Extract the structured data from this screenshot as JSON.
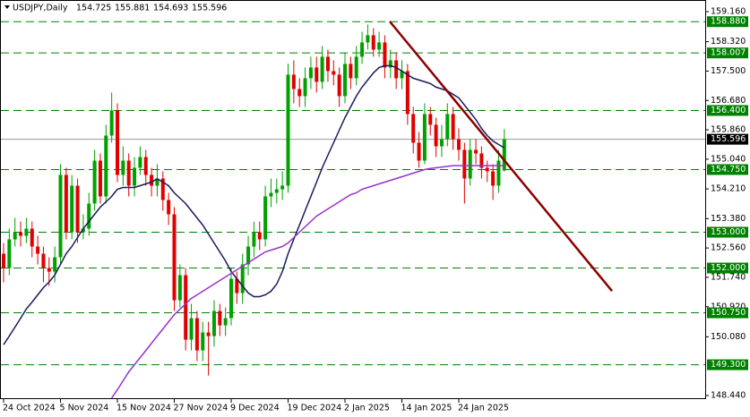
{
  "chart_data": {
    "type": "candlestick",
    "title": "USDJPY,Daily",
    "categories": [
      "24 Oct 2024",
      null,
      null,
      null,
      null,
      null,
      null,
      null,
      null,
      null,
      "5 Nov 2024",
      null,
      null,
      null,
      null,
      null,
      null,
      null,
      null,
      null,
      "15 Nov 2024",
      null,
      null,
      null,
      null,
      null,
      null,
      null,
      null,
      null,
      "27 Nov 2024",
      null,
      null,
      null,
      null,
      null,
      null,
      null,
      null,
      null,
      "9 Dec 2024",
      null,
      null,
      null,
      null,
      null,
      null,
      null,
      null,
      null,
      "19 Dec 2024",
      null,
      null,
      null,
      null,
      null,
      null,
      null,
      null,
      null,
      "2 Jan 2025",
      null,
      null,
      null,
      null,
      null,
      null,
      null,
      null,
      null,
      "14 Jan 2025",
      null,
      null,
      null,
      null,
      null,
      null,
      null,
      null,
      null,
      "24 Jan 2025",
      null,
      null,
      null,
      null,
      null,
      null,
      null,
      null
    ],
    "open": [
      152.4,
      152.0,
      152.8,
      153.0,
      152.9,
      153.1,
      152.6,
      152.4,
      152.0,
      151.9,
      152.3,
      154.6,
      153.0,
      154.3,
      153.0,
      153.1,
      153.8,
      155.0,
      154.0,
      155.7,
      156.4,
      154.6,
      155.0,
      154.3,
      154.8,
      155.1,
      154.6,
      154.3,
      154.5,
      153.9,
      153.5,
      151.1,
      151.8,
      150.0,
      150.6,
      149.7,
      150.2,
      150.1,
      150.8,
      150.4,
      150.6,
      151.7,
      151.3,
      152.1,
      152.6,
      153.0,
      152.8,
      154.0,
      154.1,
      154.2,
      154.3,
      157.4,
      157.0,
      156.8,
      157.3,
      157.6,
      157.2,
      157.9,
      157.5,
      157.4,
      156.8,
      157.7,
      157.3,
      157.9,
      158.3,
      158.5,
      158.1,
      158.3,
      157.6,
      157.8,
      157.3,
      157.5,
      156.3,
      155.5,
      155.0,
      156.3,
      156.0,
      155.4,
      155.6,
      156.3,
      155.6,
      155.3,
      154.5,
      155.3,
      155.2,
      154.8,
      154.7,
      154.3,
      154.725
    ],
    "high": [
      152.7,
      153.1,
      153.4,
      153.3,
      153.4,
      153.3,
      152.9,
      152.6,
      152.3,
      152.6,
      154.9,
      154.8,
      154.6,
      154.5,
      153.5,
      154.1,
      155.3,
      155.2,
      156.0,
      156.9,
      156.6,
      155.4,
      155.2,
      155.1,
      155.4,
      155.3,
      154.8,
      154.9,
      154.7,
      154.1,
      153.7,
      152.1,
      152.0,
      151.0,
      150.8,
      150.5,
      150.5,
      151.1,
      151.0,
      150.9,
      152.0,
      151.9,
      152.4,
      152.9,
      153.3,
      153.3,
      154.3,
      154.5,
      154.5,
      154.7,
      157.7,
      157.8,
      157.3,
      157.6,
      157.9,
      157.9,
      158.2,
      158.1,
      157.8,
      157.6,
      158.0,
      157.9,
      158.2,
      158.6,
      158.8,
      158.7,
      158.6,
      158.5,
      158.1,
      158.0,
      157.8,
      157.7,
      156.5,
      155.8,
      156.6,
      156.5,
      156.2,
      156.0,
      156.6,
      156.5,
      155.9,
      155.5,
      155.6,
      155.6,
      155.4,
      155.0,
      154.9,
      155.3,
      155.881
    ],
    "low": [
      151.6,
      151.8,
      152.6,
      152.6,
      152.7,
      152.3,
      152.1,
      151.6,
      151.5,
      151.6,
      152.1,
      152.8,
      152.8,
      152.7,
      152.8,
      152.9,
      153.6,
      153.8,
      153.8,
      155.5,
      154.4,
      154.3,
      154.0,
      154.0,
      154.6,
      154.3,
      154.0,
      154.0,
      153.6,
      153.2,
      150.8,
      150.9,
      149.7,
      149.7,
      149.4,
      149.4,
      149.0,
      149.8,
      150.1,
      150.1,
      150.4,
      151.0,
      151.0,
      151.8,
      152.3,
      152.5,
      152.6,
      153.7,
      153.8,
      153.9,
      154.1,
      156.6,
      156.5,
      156.5,
      157.0,
      156.9,
      157.0,
      157.2,
      157.1,
      156.5,
      156.6,
      157.0,
      157.1,
      157.7,
      158.1,
      157.9,
      157.9,
      157.3,
      157.3,
      157.0,
      157.0,
      156.0,
      155.2,
      154.8,
      154.9,
      155.7,
      155.1,
      155.1,
      155.4,
      155.3,
      155.0,
      153.8,
      154.3,
      154.9,
      154.5,
      154.4,
      153.9,
      154.1,
      154.693
    ],
    "close": [
      152.0,
      152.8,
      153.0,
      152.9,
      153.1,
      152.6,
      152.4,
      152.0,
      151.9,
      152.3,
      154.6,
      153.0,
      154.3,
      153.0,
      153.1,
      153.8,
      155.0,
      154.0,
      155.7,
      156.4,
      154.6,
      155.0,
      154.3,
      154.8,
      155.1,
      154.6,
      154.3,
      154.5,
      153.9,
      153.5,
      151.1,
      151.8,
      150.0,
      150.6,
      149.7,
      150.2,
      150.1,
      150.8,
      150.4,
      150.6,
      151.7,
      151.3,
      152.1,
      152.6,
      153.0,
      152.8,
      154.0,
      154.1,
      154.2,
      154.3,
      157.4,
      157.0,
      156.8,
      157.3,
      157.6,
      157.2,
      157.9,
      157.5,
      157.4,
      156.8,
      157.7,
      157.3,
      157.9,
      158.3,
      158.5,
      158.1,
      158.3,
      157.6,
      157.8,
      157.3,
      157.5,
      156.3,
      155.5,
      155.0,
      156.3,
      156.0,
      155.4,
      155.6,
      156.3,
      155.6,
      155.3,
      154.5,
      155.3,
      155.2,
      154.8,
      154.7,
      154.3,
      155.0,
      155.596
    ],
    "up_color": "#00a000",
    "down_color": "#e00000",
    "lines": [
      {
        "color": "#1a1a5e",
        "values": [
          149.86,
          150.1,
          150.35,
          150.6,
          150.86,
          151.05,
          151.25,
          151.45,
          151.61,
          151.8,
          152.1,
          152.4,
          152.6,
          152.85,
          153.1,
          153.3,
          153.5,
          153.7,
          153.85,
          154.0,
          154.2,
          154.25,
          154.25,
          154.25,
          154.3,
          154.35,
          154.4,
          154.49,
          154.4,
          154.3,
          154.1,
          153.95,
          153.8,
          153.6,
          153.4,
          153.2,
          152.95,
          152.7,
          152.45,
          152.2,
          151.9,
          151.7,
          151.5,
          151.3,
          151.2,
          151.2,
          151.25,
          151.35,
          151.55,
          151.9,
          152.4,
          152.8,
          153.2,
          153.6,
          154.0,
          154.4,
          154.8,
          155.15,
          155.5,
          155.85,
          156.2,
          156.5,
          156.8,
          157.05,
          157.25,
          157.45,
          157.6,
          157.65,
          157.65,
          157.6,
          157.5,
          157.4,
          157.3,
          157.25,
          157.2,
          157.15,
          157.05,
          157.0,
          156.95,
          156.85,
          156.75,
          156.55,
          156.35,
          156.15,
          155.9,
          155.7,
          155.55,
          155.45,
          155.36
        ]
      },
      {
        "color": "#9932cc",
        "values": [
          null,
          null,
          null,
          null,
          null,
          null,
          null,
          null,
          null,
          null,
          null,
          null,
          null,
          null,
          null,
          null,
          null,
          null,
          null,
          148.37,
          148.6,
          148.85,
          149.1,
          149.3,
          149.5,
          149.7,
          149.9,
          150.1,
          150.3,
          150.5,
          150.7,
          150.85,
          151.0,
          151.15,
          151.25,
          151.35,
          151.45,
          151.55,
          151.65,
          151.75,
          151.85,
          151.95,
          152.05,
          152.15,
          152.25,
          152.35,
          152.45,
          152.5,
          152.55,
          152.6,
          152.7,
          152.85,
          153.0,
          153.15,
          153.3,
          153.45,
          153.55,
          153.65,
          153.75,
          153.85,
          153.95,
          154.05,
          154.1,
          154.2,
          154.25,
          154.3,
          154.35,
          154.4,
          154.45,
          154.5,
          154.55,
          154.6,
          154.65,
          154.7,
          154.75,
          154.78,
          154.8,
          154.82,
          154.84,
          154.86,
          154.86,
          154.86,
          154.86,
          154.86,
          154.86,
          154.86,
          154.86,
          154.86,
          154.86
        ]
      }
    ],
    "trendline": {
      "color": "#8b0000",
      "values": [
        158.885,
        151.36
      ]
    },
    "levels": [
      {
        "value": 158.88,
        "label": "158.880"
      },
      158.007,
      {
        "value": 156.4,
        "label": "156.400"
      },
      {
        "value": 154.75,
        "label": "154.750"
      },
      {
        "value": 153.0,
        "label": "153.000"
      },
      {
        "value": 152.0,
        "label": "152.000"
      },
      {
        "value": 150.75,
        "label": "150.750"
      },
      {
        "value": 149.3,
        "label": "149.300"
      }
    ],
    "level_color": "#008000",
    "ylim": [
      148.34,
      159.485
    ],
    "yticks": [
      {
        "value": 159.16,
        "label": "159.160"
      },
      {
        "value": 158.32,
        "label": "158.320"
      },
      {
        "value": 157.5,
        "label": "157.500"
      },
      {
        "value": 156.68,
        "label": "156.680"
      },
      {
        "value": 155.86,
        "label": "155.860"
      },
      {
        "value": 155.04,
        "label": "155.040"
      },
      {
        "value": 154.21,
        "label": "154.210"
      },
      {
        "value": 153.38,
        "label": "153.380"
      },
      {
        "value": 152.56,
        "label": "152.560"
      },
      {
        "value": 151.74,
        "label": "151.740"
      },
      {
        "value": 150.92,
        "label": "150.920"
      },
      {
        "value": 150.08,
        "label": "150.080"
      },
      {
        "value": 148.44,
        "label": "148.440"
      }
    ]
  }
}
